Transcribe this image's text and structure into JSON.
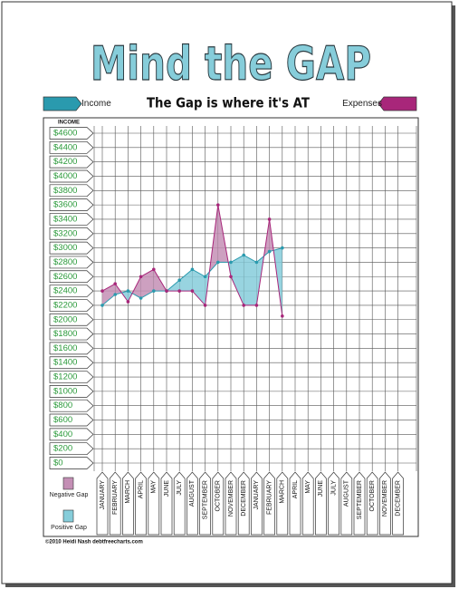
{
  "chart_data": {
    "type": "line",
    "title": "Mind the GAP",
    "subtitle": "The Gap is where it's AT",
    "y_axis_label": "INCOME",
    "footer": "©2010 Heidi Nash debtfreecharts.com",
    "categories": [
      "JANUARY",
      "FEBRUARY",
      "MARCH",
      "APRIL",
      "MAY",
      "JUNE",
      "JULY",
      "AUGUST",
      "SEPTEMBER",
      "OCTOBER",
      "NOVEMBER",
      "DECEMBER",
      "JANUARY",
      "FEBRUARY",
      "MARCH",
      "APRIL",
      "MAY",
      "JUNE",
      "JULY",
      "AUGUST",
      "SEPTEMBER",
      "OCTOBER",
      "NOVEMBER",
      "DECEMBER"
    ],
    "series": [
      {
        "name": "Income",
        "color": "#2a9aae",
        "values": [
          2200,
          2350,
          2400,
          2300,
          2400,
          2400,
          2550,
          2700,
          2600,
          2800,
          2800,
          2900,
          2800,
          2950,
          3000,
          null,
          null,
          null,
          null,
          null,
          null,
          null,
          null,
          null
        ]
      },
      {
        "name": "Expenses",
        "color": "#a8267a",
        "values": [
          2400,
          2500,
          2250,
          2600,
          2700,
          2400,
          2400,
          2400,
          2200,
          3600,
          2600,
          2200,
          2200,
          3400,
          2050,
          null,
          null,
          null,
          null,
          null,
          null,
          null,
          null,
          null
        ]
      }
    ],
    "gap_legend": [
      {
        "label": "Negative Gap",
        "color": "#c48fb5"
      },
      {
        "label": "Positive Gap",
        "color": "#86cdda"
      }
    ],
    "ylim": [
      0,
      4600
    ],
    "yticks": [
      {
        "value": 0,
        "label": "$0"
      },
      {
        "value": 200,
        "label": "$200"
      },
      {
        "value": 400,
        "label": "$400"
      },
      {
        "value": 600,
        "label": "$600"
      },
      {
        "value": 800,
        "label": "$800"
      },
      {
        "value": 1000,
        "label": "$1000"
      },
      {
        "value": 1200,
        "label": "$1200"
      },
      {
        "value": 1400,
        "label": "$1400"
      },
      {
        "value": 1600,
        "label": "$1600"
      },
      {
        "value": 1800,
        "label": "$1800"
      },
      {
        "value": 2000,
        "label": "$2000"
      },
      {
        "value": 2200,
        "label": "$2200"
      },
      {
        "value": 2400,
        "label": "$2400"
      },
      {
        "value": 2600,
        "label": "$2600"
      },
      {
        "value": 2800,
        "label": "$2800"
      },
      {
        "value": 3000,
        "label": "$3000"
      },
      {
        "value": 3200,
        "label": "$3200"
      },
      {
        "value": 3400,
        "label": "$3400"
      },
      {
        "value": 3600,
        "label": "$3600"
      },
      {
        "value": 3800,
        "label": "$3800"
      },
      {
        "value": 4000,
        "label": "$4000"
      },
      {
        "value": 4200,
        "label": "$4200"
      },
      {
        "value": 4400,
        "label": "$4400"
      },
      {
        "value": 4600,
        "label": "$4600"
      }
    ],
    "grid": true
  }
}
